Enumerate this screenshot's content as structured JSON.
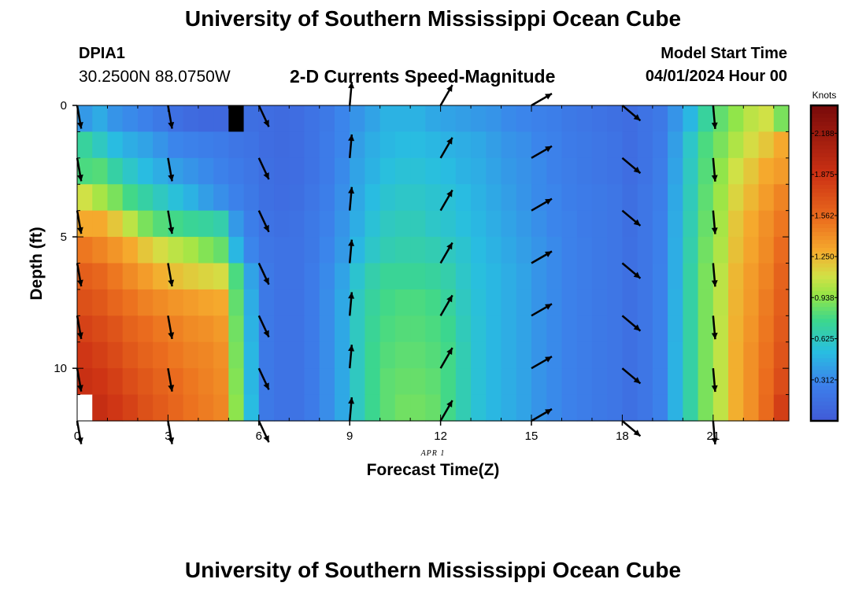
{
  "header": {
    "title": "University of Southern Mississippi Ocean Cube",
    "station": "DPIA1",
    "coords": "30.2500N  88.0750W",
    "plot_title": "2-D Currents Speed-Magnitude",
    "model_label": "Model Start Time",
    "model_time": "04/01/2024 Hour 00"
  },
  "footer": {
    "title": "University of Southern Mississippi Ocean Cube"
  },
  "chart_data": {
    "type": "heatmap",
    "xlabel": "Forecast Time(Z)",
    "ylabel": "Depth (ft)",
    "date_label": "APR 1",
    "xlim": [
      0,
      23.5
    ],
    "ylim": [
      0,
      12
    ],
    "y_inverted": true,
    "x_ticks": [
      "0",
      "3",
      "6",
      "9",
      "12",
      "15",
      "18",
      "21"
    ],
    "y_ticks": [
      "0",
      "5",
      "10"
    ],
    "colorbar": {
      "unit": "Knots",
      "min": 0,
      "max": 2.4,
      "ticks": [
        "2.188",
        "1.875",
        "1.562",
        "1.250",
        "0.938",
        "0.625",
        "0.312"
      ]
    },
    "hours": [
      0,
      0.5,
      1,
      1.5,
      2,
      2.5,
      3,
      3.5,
      4,
      4.5,
      5,
      5.5,
      6,
      6.5,
      7,
      7.5,
      8,
      8.5,
      9,
      9.5,
      10,
      10.5,
      11,
      11.5,
      12,
      12.5,
      13,
      13.5,
      14,
      14.5,
      15,
      15.5,
      16,
      16.5,
      17,
      17.5,
      18,
      18.5,
      19,
      19.5,
      20,
      20.5,
      21,
      21.5,
      22,
      22.5,
      23
    ],
    "depths": [
      0,
      1,
      2,
      3,
      4,
      5,
      6,
      7,
      8,
      9,
      10,
      11
    ],
    "speed_knots": [
      [
        0.38,
        0.45,
        0.36,
        0.32,
        0.28,
        0.22,
        0.16,
        0.12,
        0.1,
        0.1,
        null,
        0.15,
        0.14,
        0.12,
        0.14,
        0.18,
        0.22,
        0.3,
        0.36,
        0.42,
        0.48,
        0.48,
        0.48,
        0.44,
        0.42,
        0.4,
        0.38,
        0.36,
        0.32,
        0.3,
        0.28,
        0.26,
        0.22,
        0.2,
        0.18,
        0.16,
        0.14,
        0.18,
        0.22,
        0.36,
        0.5,
        0.72,
        0.85,
        0.95,
        1.05,
        1.1,
        0.9
      ],
      [
        0.72,
        0.62,
        0.52,
        0.46,
        0.42,
        0.36,
        0.3,
        0.28,
        0.26,
        0.24,
        0.2,
        0.18,
        0.14,
        0.12,
        0.14,
        0.18,
        0.24,
        0.3,
        0.4,
        0.46,
        0.5,
        0.52,
        0.52,
        0.5,
        0.48,
        0.46,
        0.44,
        0.4,
        0.36,
        0.34,
        0.3,
        0.28,
        0.24,
        0.22,
        0.2,
        0.18,
        0.14,
        0.18,
        0.24,
        0.4,
        0.6,
        0.8,
        0.9,
        1.02,
        1.12,
        1.2,
        1.3
      ],
      [
        0.8,
        0.82,
        0.7,
        0.6,
        0.52,
        0.46,
        0.4,
        0.36,
        0.32,
        0.28,
        0.24,
        0.2,
        0.15,
        0.13,
        0.14,
        0.18,
        0.24,
        0.32,
        0.42,
        0.48,
        0.54,
        0.56,
        0.56,
        0.54,
        0.52,
        0.48,
        0.46,
        0.42,
        0.38,
        0.35,
        0.32,
        0.28,
        0.25,
        0.22,
        0.2,
        0.18,
        0.14,
        0.18,
        0.25,
        0.42,
        0.62,
        0.82,
        0.95,
        1.1,
        1.2,
        1.3,
        1.35
      ],
      [
        1.1,
        1.0,
        0.9,
        0.78,
        0.7,
        0.62,
        0.55,
        0.48,
        0.4,
        0.34,
        0.28,
        0.22,
        0.16,
        0.14,
        0.15,
        0.2,
        0.26,
        0.34,
        0.44,
        0.52,
        0.58,
        0.6,
        0.6,
        0.58,
        0.56,
        0.52,
        0.48,
        0.44,
        0.4,
        0.36,
        0.32,
        0.3,
        0.26,
        0.24,
        0.22,
        0.2,
        0.15,
        0.2,
        0.26,
        0.44,
        0.64,
        0.84,
        0.98,
        1.15,
        1.25,
        1.35,
        1.45
      ],
      [
        1.3,
        1.3,
        1.2,
        1.05,
        0.9,
        0.82,
        0.78,
        0.74,
        0.72,
        0.68,
        0.38,
        0.26,
        0.18,
        0.16,
        0.17,
        0.22,
        0.28,
        0.36,
        0.46,
        0.56,
        0.62,
        0.64,
        0.64,
        0.6,
        0.58,
        0.54,
        0.5,
        0.46,
        0.42,
        0.38,
        0.34,
        0.3,
        0.28,
        0.24,
        0.22,
        0.2,
        0.15,
        0.2,
        0.27,
        0.45,
        0.66,
        0.86,
        1.0,
        1.2,
        1.3,
        1.4,
        1.5
      ],
      [
        1.5,
        1.45,
        1.38,
        1.3,
        1.2,
        1.12,
        1.05,
        1.0,
        0.92,
        0.86,
        0.5,
        0.3,
        0.2,
        0.18,
        0.18,
        0.22,
        0.3,
        0.38,
        0.5,
        0.6,
        0.66,
        0.68,
        0.68,
        0.66,
        0.62,
        0.58,
        0.52,
        0.48,
        0.44,
        0.4,
        0.36,
        0.32,
        0.28,
        0.25,
        0.22,
        0.2,
        0.16,
        0.2,
        0.27,
        0.46,
        0.68,
        0.88,
        1.02,
        1.22,
        1.32,
        1.42,
        1.55
      ],
      [
        1.62,
        1.58,
        1.5,
        1.42,
        1.35,
        1.28,
        1.22,
        1.18,
        1.15,
        1.12,
        0.8,
        0.42,
        0.22,
        0.18,
        0.18,
        0.24,
        0.32,
        0.42,
        0.58,
        0.68,
        0.74,
        0.74,
        0.74,
        0.72,
        0.68,
        0.6,
        0.54,
        0.5,
        0.46,
        0.42,
        0.36,
        0.32,
        0.28,
        0.25,
        0.22,
        0.2,
        0.16,
        0.2,
        0.28,
        0.46,
        0.7,
        0.9,
        1.05,
        1.25,
        1.35,
        1.45,
        1.6
      ],
      [
        1.7,
        1.66,
        1.58,
        1.52,
        1.46,
        1.42,
        1.38,
        1.35,
        1.32,
        1.3,
        0.85,
        0.46,
        0.22,
        0.18,
        0.18,
        0.24,
        0.33,
        0.44,
        0.62,
        0.72,
        0.78,
        0.8,
        0.8,
        0.78,
        0.72,
        0.62,
        0.55,
        0.5,
        0.46,
        0.42,
        0.36,
        0.32,
        0.28,
        0.25,
        0.22,
        0.2,
        0.16,
        0.2,
        0.28,
        0.47,
        0.7,
        0.9,
        1.05,
        1.26,
        1.36,
        1.48,
        1.62
      ],
      [
        1.78,
        1.74,
        1.68,
        1.6,
        1.55,
        1.5,
        1.46,
        1.42,
        1.4,
        1.36,
        0.88,
        0.48,
        0.22,
        0.18,
        0.18,
        0.24,
        0.33,
        0.44,
        0.62,
        0.74,
        0.8,
        0.82,
        0.82,
        0.8,
        0.76,
        0.64,
        0.56,
        0.5,
        0.46,
        0.42,
        0.36,
        0.32,
        0.28,
        0.25,
        0.22,
        0.2,
        0.16,
        0.2,
        0.28,
        0.47,
        0.7,
        0.9,
        1.06,
        1.27,
        1.38,
        1.5,
        1.65
      ],
      [
        1.85,
        1.8,
        1.74,
        1.66,
        1.6,
        1.55,
        1.5,
        1.46,
        1.44,
        1.4,
        0.9,
        0.5,
        0.22,
        0.18,
        0.18,
        0.24,
        0.33,
        0.44,
        0.62,
        0.76,
        0.82,
        0.84,
        0.84,
        0.82,
        0.78,
        0.66,
        0.56,
        0.5,
        0.46,
        0.42,
        0.36,
        0.32,
        0.28,
        0.25,
        0.22,
        0.2,
        0.16,
        0.2,
        0.28,
        0.48,
        0.7,
        0.9,
        1.06,
        1.28,
        1.4,
        1.52,
        1.68
      ],
      [
        1.9,
        1.86,
        1.8,
        1.72,
        1.66,
        1.6,
        1.55,
        1.5,
        1.46,
        1.42,
        0.92,
        0.5,
        0.22,
        0.18,
        0.18,
        0.24,
        0.33,
        0.44,
        0.62,
        0.76,
        0.84,
        0.86,
        0.86,
        0.84,
        0.78,
        0.66,
        0.56,
        0.5,
        0.46,
        0.42,
        0.36,
        0.32,
        0.28,
        0.25,
        0.22,
        0.2,
        0.16,
        0.2,
        0.28,
        0.48,
        0.7,
        0.9,
        1.06,
        1.28,
        1.4,
        1.54,
        1.72
      ],
      [
        null,
        1.92,
        1.85,
        1.78,
        1.7,
        1.64,
        1.58,
        1.52,
        1.48,
        1.44,
        0.94,
        0.52,
        0.22,
        0.18,
        0.18,
        0.24,
        0.33,
        0.44,
        0.62,
        0.76,
        0.84,
        0.88,
        0.88,
        0.86,
        0.78,
        0.66,
        0.56,
        0.5,
        0.46,
        0.42,
        0.36,
        0.32,
        0.28,
        0.25,
        0.22,
        0.2,
        0.16,
        0.2,
        0.28,
        0.48,
        0.7,
        0.9,
        1.06,
        1.28,
        1.4,
        1.56,
        1.8
      ]
    ],
    "vectors": {
      "hours": [
        0,
        3,
        6,
        9,
        12,
        15,
        18,
        21
      ],
      "depths": [
        0,
        2,
        4,
        6,
        8,
        10,
        12
      ],
      "directions_deg": [
        170,
        170,
        155,
        5,
        30,
        60,
        130,
        175
      ]
    }
  }
}
